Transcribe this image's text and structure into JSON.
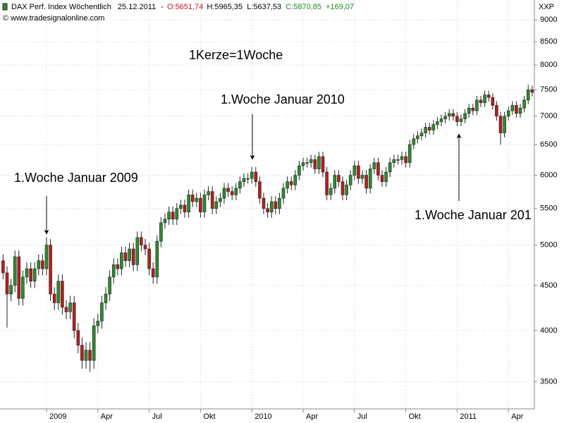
{
  "chart_data": {
    "type": "candlestick",
    "header": {
      "name": "DAX Perf. Index Wöchentlich",
      "date": "25.12.2011",
      "sep": "-",
      "open": "O:5651,74",
      "high": "H:5965,35",
      "low": "L:5637,53",
      "close": "C:5870,85",
      "change": "+169,07"
    },
    "source": "© www.tradesignalonline.com",
    "axis_label": "XXP",
    "annotations": [
      {
        "text": "1Kerze=1Woche"
      },
      {
        "text": "1.Woche Januar 2009"
      },
      {
        "text": "1.Woche Januar 2010"
      },
      {
        "text": "1.Woche Januar 201"
      }
    ],
    "log_scale": true,
    "grid": true,
    "up_color": "#2f8a2f",
    "down_color": "#b42020",
    "ylim": [
      3260,
      9480
    ],
    "yticks": [
      3500,
      4000,
      4500,
      5000,
      5500,
      6000,
      6500,
      7000,
      7500,
      8000,
      8500,
      9000
    ],
    "categories": [
      null,
      null,
      null,
      null,
      null,
      null,
      null,
      null,
      null,
      null,
      null,
      "2009",
      null,
      null,
      null,
      null,
      null,
      null,
      null,
      null,
      null,
      null,
      null,
      null,
      "Apr",
      null,
      null,
      null,
      null,
      null,
      null,
      null,
      null,
      null,
      null,
      null,
      null,
      "Jul",
      null,
      null,
      null,
      null,
      null,
      null,
      null,
      null,
      null,
      null,
      null,
      null,
      "Okt",
      null,
      null,
      null,
      null,
      null,
      null,
      null,
      null,
      null,
      null,
      null,
      null,
      "2010",
      null,
      null,
      null,
      null,
      null,
      null,
      null,
      null,
      null,
      null,
      null,
      null,
      "Apr",
      null,
      null,
      null,
      null,
      null,
      null,
      null,
      null,
      null,
      null,
      null,
      null,
      "Jul",
      null,
      null,
      null,
      null,
      null,
      null,
      null,
      null,
      null,
      null,
      null,
      null,
      "Okt",
      null,
      null,
      null,
      null,
      null,
      null,
      null,
      null,
      null,
      null,
      null,
      null,
      "2011",
      null,
      null,
      null,
      null,
      null,
      null,
      null,
      null,
      null,
      null,
      null,
      null,
      "Apr",
      null,
      null,
      null,
      null,
      null,
      null
    ],
    "open": [
      4800,
      4650,
      4400,
      4500,
      4850,
      4350,
      4600,
      4700,
      4550,
      4700,
      4800,
      4700,
      5000,
      4400,
      4300,
      4550,
      4250,
      4200,
      4300,
      4000,
      3850,
      3700,
      3800,
      3700,
      4050,
      4100,
      4300,
      4400,
      4600,
      4750,
      4700,
      4900,
      4800,
      4950,
      4750,
      5100,
      5000,
      4950,
      4700,
      4600,
      5050,
      5300,
      5350,
      5450,
      5350,
      5500,
      5550,
      5450,
      5700,
      5600,
      5650,
      5450,
      5700,
      5750,
      5500,
      5600,
      5650,
      5800,
      5750,
      5700,
      5800,
      5900,
      5950,
      5950,
      6050,
      5900,
      5650,
      5500,
      5450,
      5600,
      5500,
      5650,
      5800,
      5900,
      5850,
      6000,
      6150,
      6200,
      6200,
      6250,
      6100,
      6300,
      6050,
      5700,
      5800,
      6000,
      5900,
      5700,
      5850,
      6000,
      6150,
      5950,
      6000,
      5800,
      6100,
      6200,
      6000,
      5900,
      6050,
      6200,
      6250,
      6250,
      6300,
      6200,
      6500,
      6600,
      6650,
      6700,
      6800,
      6750,
      6850,
      6900,
      6950,
      7000,
      7050,
      7000,
      6900,
      6950,
      7050,
      7150,
      7100,
      7300,
      7250,
      7400,
      7350,
      7200,
      7000,
      6700,
      7000,
      7100,
      7200,
      7050,
      7150,
      7300,
      7500
    ],
    "high": [
      4880,
      4730,
      4580,
      4930,
      4930,
      4680,
      4780,
      4780,
      4780,
      4880,
      4880,
      5100,
      5080,
      4480,
      4630,
      4630,
      4330,
      4380,
      4380,
      4080,
      3930,
      3880,
      3880,
      4130,
      4180,
      4380,
      4480,
      4680,
      4830,
      4830,
      4980,
      4980,
      5030,
      5030,
      5180,
      5180,
      5080,
      5030,
      4780,
      5130,
      5380,
      5430,
      5530,
      5530,
      5580,
      5630,
      5630,
      5780,
      5780,
      5730,
      5730,
      5780,
      5830,
      5830,
      5680,
      5730,
      5880,
      5880,
      5830,
      5880,
      5980,
      6030,
      6030,
      6130,
      6130,
      5980,
      5730,
      5580,
      5680,
      5680,
      5730,
      5880,
      5980,
      5980,
      6080,
      6230,
      6280,
      6280,
      6330,
      6330,
      6380,
      6380,
      6130,
      5880,
      6080,
      6080,
      5980,
      5930,
      6080,
      6230,
      6230,
      6080,
      6080,
      6180,
      6280,
      6280,
      6080,
      6130,
      6280,
      6330,
      6330,
      6380,
      6380,
      6580,
      6680,
      6730,
      6780,
      6880,
      6880,
      6930,
      6980,
      7030,
      7080,
      7130,
      7130,
      7080,
      7030,
      7130,
      7230,
      7230,
      7380,
      7380,
      7480,
      7480,
      7430,
      7280,
      7080,
      7080,
      7180,
      7280,
      7280,
      7230,
      7380,
      7600,
      7580
    ],
    "low": [
      4570,
      4030,
      4320,
      4420,
      4270,
      4270,
      4520,
      4470,
      4470,
      4620,
      4620,
      4620,
      4320,
      4220,
      4220,
      4170,
      4120,
      4120,
      3920,
      3770,
      3620,
      3620,
      3590,
      3620,
      3970,
      4020,
      4220,
      4320,
      4520,
      4620,
      4620,
      4720,
      4720,
      4670,
      4670,
      4920,
      4870,
      4620,
      4520,
      4520,
      4970,
      5220,
      5270,
      5270,
      5270,
      5420,
      5370,
      5370,
      5520,
      5520,
      5370,
      5370,
      5620,
      5420,
      5420,
      5520,
      5570,
      5670,
      5620,
      5620,
      5720,
      5820,
      5870,
      5870,
      5820,
      5570,
      5420,
      5370,
      5370,
      5420,
      5420,
      5570,
      5720,
      5770,
      5770,
      5920,
      6070,
      6120,
      6120,
      6020,
      6020,
      5970,
      5620,
      5620,
      5720,
      5820,
      5620,
      5620,
      5770,
      5920,
      5870,
      5870,
      5720,
      5720,
      6020,
      5920,
      5820,
      5820,
      5970,
      6120,
      6170,
      6170,
      6120,
      6120,
      6420,
      6520,
      6570,
      6620,
      6670,
      6670,
      6770,
      6820,
      6870,
      6920,
      6920,
      6820,
      6820,
      6870,
      6970,
      7020,
      7020,
      7170,
      7170,
      7270,
      7120,
      6920,
      6500,
      6620,
      6920,
      7020,
      6970,
      6970,
      7070,
      7220,
      7370
    ],
    "close": [
      4650,
      4400,
      4500,
      4850,
      4350,
      4600,
      4700,
      4550,
      4700,
      4800,
      4700,
      5000,
      4400,
      4300,
      4550,
      4250,
      4200,
      4300,
      4000,
      3850,
      3700,
      3800,
      3700,
      4050,
      4100,
      4300,
      4400,
      4600,
      4750,
      4700,
      4900,
      4800,
      4950,
      4750,
      5100,
      5000,
      4950,
      4700,
      4600,
      5050,
      5300,
      5350,
      5450,
      5350,
      5500,
      5550,
      5450,
      5700,
      5600,
      5650,
      5450,
      5700,
      5750,
      5500,
      5600,
      5650,
      5800,
      5750,
      5700,
      5800,
      5900,
      5950,
      5950,
      6050,
      5900,
      5650,
      5500,
      5450,
      5600,
      5500,
      5650,
      5800,
      5900,
      5850,
      6000,
      6150,
      6200,
      6200,
      6250,
      6100,
      6300,
      6050,
      5700,
      5800,
      6000,
      5900,
      5700,
      5850,
      6000,
      6150,
      5950,
      6000,
      5800,
      6100,
      6200,
      6000,
      5900,
      6050,
      6200,
      6250,
      6250,
      6300,
      6200,
      6500,
      6600,
      6650,
      6700,
      6800,
      6750,
      6850,
      6900,
      6950,
      7000,
      7050,
      7000,
      6900,
      6950,
      7050,
      7150,
      7100,
      7300,
      7250,
      7400,
      7350,
      7200,
      7000,
      6700,
      7000,
      7100,
      7200,
      7050,
      7150,
      7300,
      7500,
      7450
    ]
  }
}
